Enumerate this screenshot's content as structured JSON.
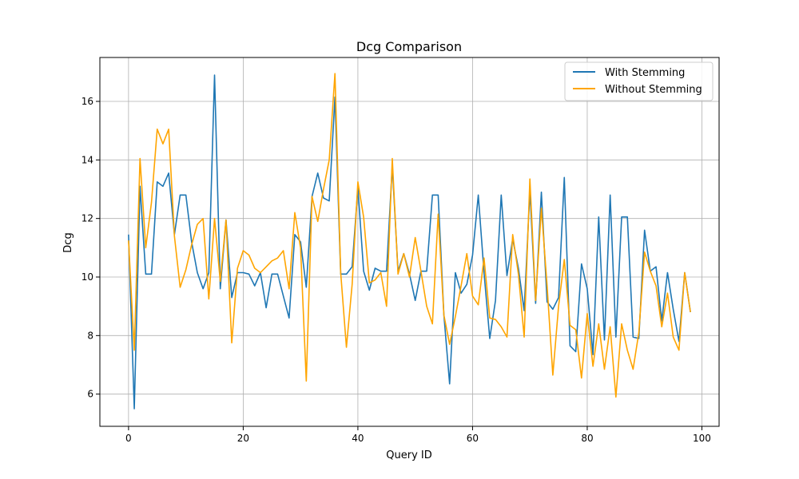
{
  "chart_data": {
    "type": "line",
    "title": "Dcg Comparison",
    "xlabel": "Query ID",
    "ylabel": "Dcg",
    "xlim": [
      -5,
      103
    ],
    "ylim": [
      4.9,
      17.5
    ],
    "xticks": [
      0,
      20,
      40,
      60,
      80,
      100
    ],
    "yticks": [
      6,
      8,
      10,
      12,
      14,
      16
    ],
    "grid": true,
    "legend_position": "top-right",
    "series": [
      {
        "name": "With Stemming",
        "color": "#1f77b4",
        "values": [
          11.45,
          5.5,
          13.1,
          10.1,
          10.1,
          13.25,
          13.1,
          13.55,
          11.45,
          12.8,
          12.8,
          11.2,
          10.15,
          9.6,
          10.15,
          16.9,
          9.6,
          11.95,
          9.3,
          10.15,
          10.15,
          10.1,
          9.7,
          10.15,
          8.95,
          10.1,
          10.1,
          9.35,
          8.6,
          11.45,
          11.2,
          9.65,
          12.75,
          13.55,
          12.7,
          12.6,
          16.15,
          10.1,
          10.1,
          10.35,
          13.05,
          10.2,
          9.55,
          10.3,
          10.2,
          10.2,
          13.8,
          10.2,
          10.8,
          10.1,
          9.2,
          10.2,
          10.2,
          12.8,
          12.8,
          8.7,
          6.35,
          10.15,
          9.45,
          9.75,
          10.75,
          12.8,
          10.15,
          7.9,
          9.2,
          12.8,
          10.05,
          11.3,
          10.3,
          8.85,
          12.95,
          9.1,
          12.9,
          9.15,
          8.9,
          9.3,
          13.4,
          7.65,
          7.45,
          10.45,
          9.6,
          7.35,
          12.05,
          7.85,
          12.8,
          7.95,
          12.05,
          12.05,
          7.95,
          7.9,
          11.6,
          10.2,
          10.35,
          8.5,
          10.15,
          8.9,
          7.8,
          10.15,
          8.8
        ]
      },
      {
        "name": "Without Stemming",
        "color": "#ffa500",
        "values": [
          11.25,
          7.5,
          14.05,
          11.0,
          12.55,
          15.05,
          14.55,
          15.05,
          11.4,
          9.65,
          10.25,
          11.1,
          11.8,
          12.0,
          9.25,
          12.0,
          9.85,
          11.95,
          7.75,
          10.3,
          10.9,
          10.75,
          10.3,
          10.15,
          10.35,
          10.55,
          10.65,
          10.9,
          9.6,
          12.2,
          11.0,
          6.45,
          12.75,
          11.9,
          13.0,
          14.0,
          16.95,
          10.15,
          7.6,
          9.75,
          13.25,
          12.05,
          9.8,
          9.9,
          10.15,
          9.0,
          14.05,
          10.1,
          10.8,
          10.0,
          11.35,
          10.2,
          9.0,
          8.4,
          12.15,
          8.7,
          7.7,
          8.65,
          9.7,
          10.8,
          9.35,
          9.05,
          10.65,
          8.6,
          8.55,
          8.3,
          7.95,
          11.45,
          10.1,
          7.95,
          13.35,
          9.2,
          12.35,
          9.7,
          6.65,
          9.0,
          10.6,
          8.35,
          8.2,
          6.55,
          8.75,
          6.95,
          8.4,
          6.85,
          8.3,
          5.9,
          8.4,
          7.5,
          6.85,
          8.1,
          10.85,
          10.2,
          9.7,
          8.3,
          9.45,
          7.95,
          7.5,
          10.15,
          8.8
        ]
      }
    ]
  }
}
